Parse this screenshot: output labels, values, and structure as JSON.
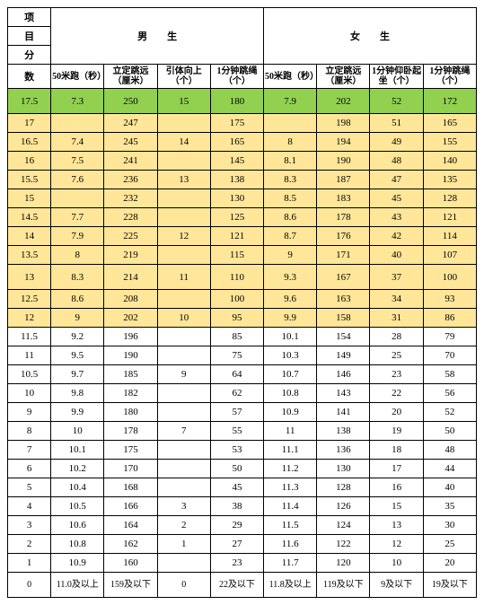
{
  "headers": {
    "vertical_labels": [
      "项",
      "目",
      "分",
      "数"
    ],
    "male": "男　　生",
    "female": "女　　生",
    "cols": [
      "50米跑（秒）",
      "立定跳远（厘米）",
      "引体向上（个）",
      "1分钟跳绳（个）",
      "50米跑（秒）",
      "立定跳远（厘米）",
      "1分钟仰卧起坐（个）",
      "1分钟跳绳（个）"
    ]
  },
  "rows": [
    {
      "score": "17.5",
      "class": "row-green",
      "cells": [
        "7.3",
        "250",
        "15",
        "180",
        "7.9",
        "202",
        "52",
        "172"
      ]
    },
    {
      "score": "17",
      "class": "row-yellow",
      "cells": [
        "",
        "247",
        "",
        "175",
        "",
        "198",
        "51",
        "165"
      ]
    },
    {
      "score": "16.5",
      "class": "row-yellow",
      "cells": [
        "7.4",
        "245",
        "14",
        "165",
        "8",
        "194",
        "49",
        "155"
      ]
    },
    {
      "score": "16",
      "class": "row-yellow",
      "cells": [
        "7.5",
        "241",
        "",
        "145",
        "8.1",
        "190",
        "48",
        "140"
      ]
    },
    {
      "score": "15.5",
      "class": "row-yellow",
      "cells": [
        "7.6",
        "236",
        "13",
        "138",
        "8.3",
        "187",
        "47",
        "135"
      ]
    },
    {
      "score": "15",
      "class": "row-yellow",
      "cells": [
        "",
        "232",
        "",
        "130",
        "8.5",
        "183",
        "45",
        "128"
      ]
    },
    {
      "score": "14.5",
      "class": "row-yellow",
      "cells": [
        "7.7",
        "228",
        "",
        "125",
        "8.6",
        "178",
        "43",
        "121"
      ]
    },
    {
      "score": "14",
      "class": "row-yellow",
      "cells": [
        "7.9",
        "225",
        "12",
        "121",
        "8.7",
        "176",
        "42",
        "114"
      ]
    },
    {
      "score": "13.5",
      "class": "row-yellow",
      "cells": [
        "8",
        "219",
        "",
        "115",
        "9",
        "171",
        "40",
        "107"
      ]
    },
    {
      "score": "13",
      "class": "row-yellow",
      "cells": [
        "8.3",
        "214",
        "11",
        "110",
        "9.3",
        "167",
        "37",
        "100"
      ]
    },
    {
      "score": "12.5",
      "class": "row-yellow",
      "cells": [
        "8.6",
        "208",
        "",
        "100",
        "9.6",
        "163",
        "34",
        "93"
      ]
    },
    {
      "score": "12",
      "class": "row-yellow",
      "cells": [
        "9",
        "202",
        "10",
        "95",
        "9.9",
        "158",
        "31",
        "86"
      ]
    },
    {
      "score": "11.5",
      "class": "row-white",
      "cells": [
        "9.2",
        "196",
        "",
        "85",
        "10.1",
        "154",
        "28",
        "79"
      ]
    },
    {
      "score": "11",
      "class": "row-white",
      "cells": [
        "9.5",
        "190",
        "",
        "75",
        "10.3",
        "149",
        "25",
        "70"
      ]
    },
    {
      "score": "10.5",
      "class": "row-white",
      "cells": [
        "9.7",
        "185",
        "9",
        "64",
        "10.7",
        "146",
        "23",
        "58"
      ]
    },
    {
      "score": "10",
      "class": "row-white",
      "cells": [
        "9.8",
        "182",
        "",
        "62",
        "10.8",
        "143",
        "22",
        "56"
      ]
    },
    {
      "score": "9",
      "class": "row-white",
      "cells": [
        "9.9",
        "180",
        "",
        "57",
        "10.9",
        "141",
        "20",
        "52"
      ]
    },
    {
      "score": "8",
      "class": "row-white",
      "cells": [
        "10",
        "178",
        "7",
        "55",
        "11",
        "138",
        "19",
        "50"
      ]
    },
    {
      "score": "7",
      "class": "row-white",
      "cells": [
        "10.1",
        "175",
        "",
        "53",
        "11.1",
        "136",
        "18",
        "48"
      ]
    },
    {
      "score": "6",
      "class": "row-white",
      "cells": [
        "10.2",
        "170",
        "",
        "50",
        "11.2",
        "130",
        "17",
        "44"
      ]
    },
    {
      "score": "5",
      "class": "row-white",
      "cells": [
        "10.4",
        "168",
        "",
        "45",
        "11.3",
        "128",
        "16",
        "40"
      ]
    },
    {
      "score": "4",
      "class": "row-white",
      "cells": [
        "10.5",
        "166",
        "3",
        "38",
        "11.4",
        "126",
        "15",
        "35"
      ]
    },
    {
      "score": "3",
      "class": "row-white",
      "cells": [
        "10.6",
        "164",
        "2",
        "29",
        "11.5",
        "124",
        "13",
        "30"
      ]
    },
    {
      "score": "2",
      "class": "row-white",
      "cells": [
        "10.8",
        "162",
        "1",
        "27",
        "11.6",
        "122",
        "12",
        "25"
      ]
    },
    {
      "score": "1",
      "class": "row-white",
      "cells": [
        "10.9",
        "160",
        "",
        "23",
        "11.7",
        "120",
        "10",
        "20"
      ]
    },
    {
      "score": "0",
      "class": "row-white",
      "cells": [
        "11.0及以上",
        "159及以下",
        "0",
        "22及以下",
        "11.8及以上",
        "119及以下",
        "9及以下",
        "19及以下"
      ]
    }
  ]
}
